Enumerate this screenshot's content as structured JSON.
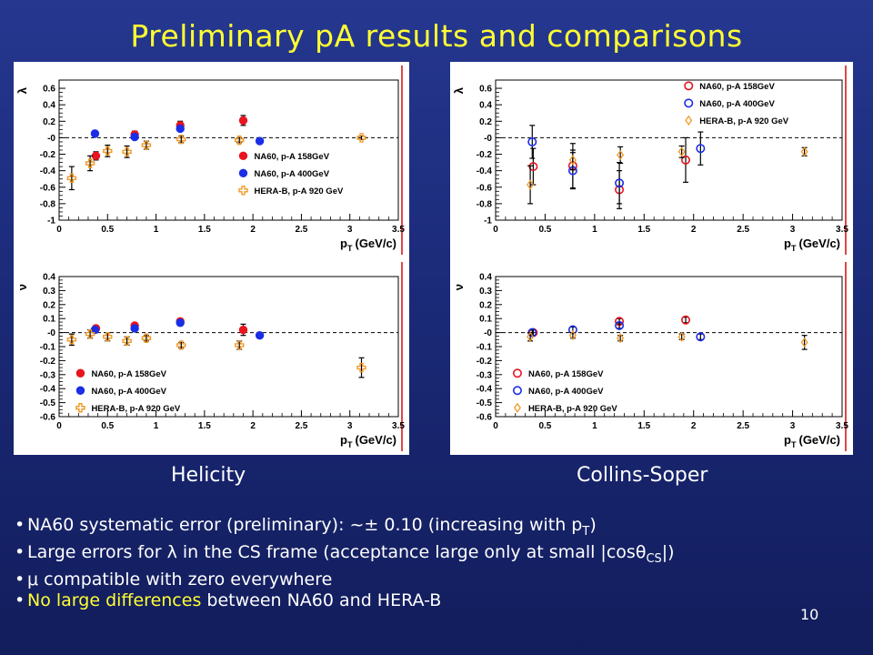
{
  "slide": {
    "title": "Preliminary pA results and comparisons",
    "page_number": "10",
    "frame_labels": {
      "left": "Helicity",
      "right": "Collins-Soper"
    },
    "bullets": [
      {
        "parts": [
          {
            "text": "NA60 systematic error (preliminary): ~± 0.10 (increasing with p"
          },
          {
            "text": "T",
            "sub": true
          },
          {
            "text": ")"
          }
        ]
      },
      {
        "parts": [
          {
            "text": "Large errors for "
          },
          {
            "text": "λ"
          },
          {
            "text": " in the CS frame  (acceptance large only at small |cos"
          },
          {
            "text": "θ"
          },
          {
            "text": "CS",
            "sub": true
          },
          {
            "text": "|)"
          }
        ]
      },
      {
        "parts": [
          {
            "text": "μ"
          },
          {
            "text": "  compatible with zero everywhere"
          }
        ]
      },
      {
        "parts": [
          {
            "text": "No large differences",
            "yellow": true
          },
          {
            "text": " between NA60 and HERA-B"
          }
        ]
      }
    ]
  },
  "colors": {
    "na60_158": "#e8141e",
    "na60_400": "#1a2ee8",
    "herab": "#f09a28",
    "title": "#ffff33"
  },
  "chart_data": [
    {
      "id": "hx-lambda",
      "type": "scatter",
      "frame": "Helicity",
      "ylabel": "λ",
      "xlabel": "p",
      "xlabel_sub": "T",
      "xlabel_unit": "(GeV/c)",
      "xlim": [
        0,
        3.5
      ],
      "ylim": [
        -1,
        0.7
      ],
      "xticks": [
        0,
        0.5,
        1,
        1.5,
        2,
        2.5,
        3,
        3.5
      ],
      "xticklabels": [
        "0",
        "0.5",
        "1",
        "1.5",
        "2",
        "2.5",
        "3",
        "3.5"
      ],
      "yticks": [
        -1,
        -0.8,
        -0.6,
        -0.4,
        -0.2,
        0,
        0.2,
        0.4,
        0.6
      ],
      "yticklabels": [
        "-1",
        "-0.8",
        "-0.6",
        "-0.4",
        "-0.2",
        "-0",
        "0.2",
        "0.4",
        "0.6"
      ],
      "legend_position": "bottom-right",
      "hollow": false,
      "series": [
        {
          "name": "NA60, p-A 158GeV",
          "marker": "circle",
          "color": "#e8141e",
          "points": [
            {
              "x": 0.38,
              "y": -0.22,
              "err": 0.05
            },
            {
              "x": 0.78,
              "y": 0.04,
              "err": 0.04
            },
            {
              "x": 1.25,
              "y": 0.15,
              "err": 0.05
            },
            {
              "x": 1.9,
              "y": 0.21,
              "err": 0.06
            }
          ]
        },
        {
          "name": "NA60, p-A 400GeV",
          "marker": "circle",
          "color": "#1a2ee8",
          "points": [
            {
              "x": 0.37,
              "y": 0.05,
              "err": 0.03
            },
            {
              "x": 0.78,
              "y": 0.01,
              "err": 0.03
            },
            {
              "x": 1.25,
              "y": 0.11,
              "err": 0.03
            },
            {
              "x": 2.07,
              "y": -0.04,
              "err": 0.02
            }
          ]
        },
        {
          "name": "HERA-B, p-A 920 GeV",
          "marker": "cross",
          "color": "#f09a28",
          "points": [
            {
              "x": 0.13,
              "y": -0.49,
              "err": 0.14
            },
            {
              "x": 0.32,
              "y": -0.31,
              "err": 0.09
            },
            {
              "x": 0.5,
              "y": -0.16,
              "err": 0.07
            },
            {
              "x": 0.7,
              "y": -0.17,
              "err": 0.07
            },
            {
              "x": 0.9,
              "y": -0.09,
              "err": 0.05
            },
            {
              "x": 1.26,
              "y": -0.02,
              "err": 0.04
            },
            {
              "x": 1.86,
              "y": -0.03,
              "err": 0.03
            },
            {
              "x": 3.12,
              "y": 0.0,
              "err": 0.02
            }
          ]
        }
      ]
    },
    {
      "id": "cs-lambda",
      "type": "scatter",
      "frame": "Collins-Soper",
      "ylabel": "λ",
      "xlabel": "p",
      "xlabel_sub": "T",
      "xlabel_unit": "(GeV/c)",
      "xlim": [
        0,
        3.5
      ],
      "ylim": [
        -1,
        0.7
      ],
      "xticks": [
        0,
        0.5,
        1,
        1.5,
        2,
        2.5,
        3,
        3.5
      ],
      "xticklabels": [
        "0",
        "0.5",
        "1",
        "1.5",
        "2",
        "2.5",
        "3",
        "3.5"
      ],
      "yticks": [
        -1,
        -0.8,
        -0.6,
        -0.4,
        -0.2,
        0,
        0.2,
        0.4,
        0.6
      ],
      "yticklabels": [
        "-1",
        "-0.8",
        "-0.6",
        "-0.4",
        "-0.2",
        "-0",
        "0.2",
        "0.4",
        "0.6"
      ],
      "legend_position": "top-right",
      "hollow": true,
      "series": [
        {
          "name": "NA60, p-A 158GeV",
          "marker": "circle",
          "color": "#e8141e",
          "points": [
            {
              "x": 0.38,
              "y": -0.35,
              "err": 0.22
            },
            {
              "x": 0.78,
              "y": -0.34,
              "err": 0.27
            },
            {
              "x": 1.25,
              "y": -0.63,
              "err": 0.23
            },
            {
              "x": 1.92,
              "y": -0.27,
              "err": 0.27
            }
          ]
        },
        {
          "name": "NA60, p-A 400GeV",
          "marker": "circle",
          "color": "#1a2ee8",
          "points": [
            {
              "x": 0.37,
              "y": -0.05,
              "err": 0.2
            },
            {
              "x": 0.78,
              "y": -0.4,
              "err": 0.22
            },
            {
              "x": 1.25,
              "y": -0.55,
              "err": 0.25
            },
            {
              "x": 2.07,
              "y": -0.13,
              "err": 0.2
            }
          ]
        },
        {
          "name": "HERA-B, p-A 920 GeV",
          "marker": "diamond",
          "color": "#f09a28",
          "points": [
            {
              "x": 0.35,
              "y": -0.57,
              "err": 0.23
            },
            {
              "x": 0.78,
              "y": -0.27,
              "err": 0.12
            },
            {
              "x": 1.26,
              "y": -0.21,
              "err": 0.1
            },
            {
              "x": 1.88,
              "y": -0.17,
              "err": 0.07
            },
            {
              "x": 3.12,
              "y": -0.17,
              "err": 0.05
            }
          ]
        }
      ]
    },
    {
      "id": "hx-nu",
      "type": "scatter",
      "frame": "Helicity",
      "ylabel": "ν",
      "xlabel": "p",
      "xlabel_sub": "T",
      "xlabel_unit": "(GeV/c)",
      "xlim": [
        0,
        3.5
      ],
      "ylim": [
        -0.6,
        0.4
      ],
      "xticks": [
        0,
        0.5,
        1,
        1.5,
        2,
        2.5,
        3,
        3.5
      ],
      "xticklabels": [
        "0",
        "0.5",
        "1",
        "1.5",
        "2",
        "2.5",
        "3",
        "3.5"
      ],
      "yticks": [
        -0.6,
        -0.5,
        -0.4,
        -0.3,
        -0.2,
        -0.1,
        0,
        0.1,
        0.2,
        0.3,
        0.4
      ],
      "yticklabels": [
        "-0.6",
        "-0.5",
        "-0.4",
        "-0.3",
        "-0.2",
        "-0.1",
        "-0",
        "0.1",
        "0.2",
        "0.3",
        "0.4"
      ],
      "legend_position": "bottom-left",
      "hollow": false,
      "series": [
        {
          "name": "NA60, p-A 158GeV",
          "marker": "circle",
          "color": "#e8141e",
          "points": [
            {
              "x": 0.38,
              "y": 0.03,
              "err": 0.02
            },
            {
              "x": 0.78,
              "y": 0.05,
              "err": 0.02
            },
            {
              "x": 1.25,
              "y": 0.08,
              "err": 0.02
            },
            {
              "x": 1.9,
              "y": 0.02,
              "err": 0.04
            }
          ]
        },
        {
          "name": "NA60, p-A 400GeV",
          "marker": "circle",
          "color": "#1a2ee8",
          "points": [
            {
              "x": 0.37,
              "y": 0.02,
              "err": 0.02
            },
            {
              "x": 0.78,
              "y": 0.03,
              "err": 0.02
            },
            {
              "x": 1.25,
              "y": 0.07,
              "err": 0.02
            },
            {
              "x": 2.07,
              "y": -0.02,
              "err": 0.01
            }
          ]
        },
        {
          "name": "HERA-B, p-A 920 GeV",
          "marker": "cross",
          "color": "#f09a28",
          "points": [
            {
              "x": 0.13,
              "y": -0.05,
              "err": 0.04
            },
            {
              "x": 0.32,
              "y": -0.01,
              "err": 0.03
            },
            {
              "x": 0.5,
              "y": -0.03,
              "err": 0.03
            },
            {
              "x": 0.7,
              "y": -0.06,
              "err": 0.03
            },
            {
              "x": 0.9,
              "y": -0.04,
              "err": 0.02
            },
            {
              "x": 1.26,
              "y": -0.09,
              "err": 0.02
            },
            {
              "x": 1.86,
              "y": -0.09,
              "err": 0.03
            },
            {
              "x": 3.12,
              "y": -0.25,
              "err": 0.07
            }
          ]
        }
      ]
    },
    {
      "id": "cs-nu",
      "type": "scatter",
      "frame": "Collins-Soper",
      "ylabel": "ν",
      "xlabel": "p",
      "xlabel_sub": "T",
      "xlabel_unit": "(GeV/c)",
      "xlim": [
        0,
        3.5
      ],
      "ylim": [
        -0.6,
        0.4
      ],
      "xticks": [
        0,
        0.5,
        1,
        1.5,
        2,
        2.5,
        3,
        3.5
      ],
      "xticklabels": [
        "0",
        "0.5",
        "1",
        "1.5",
        "2",
        "2.5",
        "3",
        "3.5"
      ],
      "yticks": [
        -0.6,
        -0.5,
        -0.4,
        -0.3,
        -0.2,
        -0.1,
        0,
        0.1,
        0.2,
        0.3,
        0.4
      ],
      "yticklabels": [
        "-0.6",
        "-0.5",
        "-0.4",
        "-0.3",
        "-0.2",
        "-0.1",
        "-0",
        "0.1",
        "0.2",
        "0.3",
        "0.4"
      ],
      "legend_position": "bottom-left",
      "hollow": true,
      "series": [
        {
          "name": "NA60, p-A 158GeV",
          "marker": "circle",
          "color": "#e8141e",
          "points": [
            {
              "x": 0.38,
              "y": 0.0,
              "err": 0.02
            },
            {
              "x": 1.25,
              "y": 0.08,
              "err": 0.02
            },
            {
              "x": 1.92,
              "y": 0.09,
              "err": 0.02
            }
          ]
        },
        {
          "name": "NA60, p-A 400GeV",
          "marker": "circle",
          "color": "#1a2ee8",
          "points": [
            {
              "x": 0.37,
              "y": 0.0,
              "err": 0.02
            },
            {
              "x": 0.78,
              "y": 0.02,
              "err": 0.02
            },
            {
              "x": 1.25,
              "y": 0.05,
              "err": 0.02
            },
            {
              "x": 2.07,
              "y": -0.03,
              "err": 0.02
            }
          ]
        },
        {
          "name": "HERA-B, p-A 920 GeV",
          "marker": "diamond",
          "color": "#f09a28",
          "points": [
            {
              "x": 0.35,
              "y": -0.03,
              "err": 0.03
            },
            {
              "x": 0.78,
              "y": -0.02,
              "err": 0.02
            },
            {
              "x": 1.26,
              "y": -0.04,
              "err": 0.02
            },
            {
              "x": 1.88,
              "y": -0.03,
              "err": 0.02
            },
            {
              "x": 3.12,
              "y": -0.07,
              "err": 0.05
            }
          ]
        }
      ]
    }
  ]
}
